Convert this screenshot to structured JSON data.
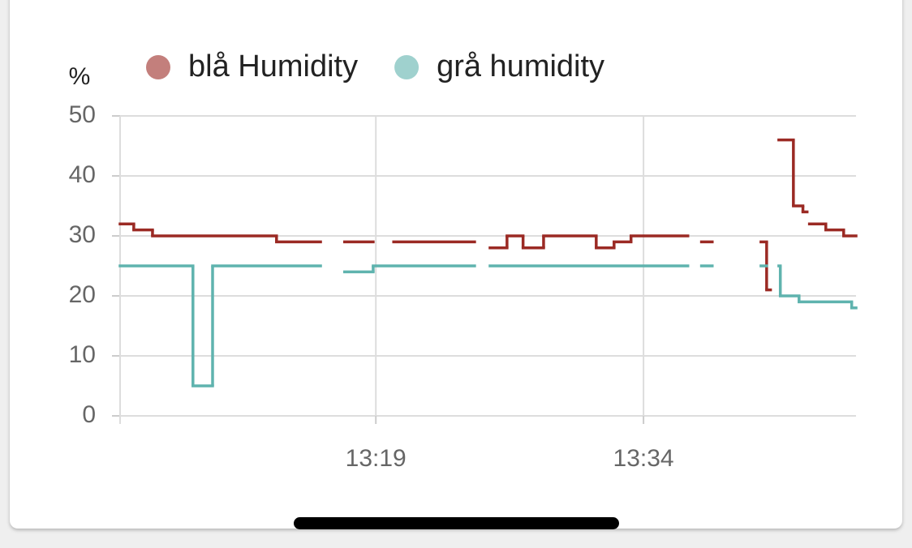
{
  "chart_data": {
    "type": "step-line",
    "y_label": "%",
    "xlim": [
      "13:04:40",
      "13:46:00"
    ],
    "xticks": [
      "13:19",
      "13:34"
    ],
    "ylim": [
      0,
      50
    ],
    "yticks": [
      0,
      10,
      20,
      30,
      40,
      50
    ],
    "grid": true,
    "legend": "top",
    "series": [
      {
        "name": "blå Humidity",
        "color": "#9b2a24",
        "x": [
          "13:04:40",
          "13:05:26",
          "13:06:29",
          "13:13:26",
          "13:15:54",
          "13:17:15",
          "13:18:51",
          "13:20:00",
          "13:24:32",
          "13:25:24",
          "13:26:21",
          "13:27:15",
          "13:28:24",
          "13:31:21",
          "13:32:21",
          "13:33:18",
          "13:36:29",
          "13:37:15",
          "13:37:51",
          "13:40:35",
          "13:40:54",
          "13:41:07",
          "13:41:35",
          "13:42:24",
          "13:42:56",
          "13:43:10",
          "13:43:18",
          "13:44:13",
          "13:45:13"
        ],
        "values": [
          32,
          31,
          30,
          29,
          null,
          29,
          null,
          29,
          null,
          28,
          30,
          28,
          30,
          28,
          29,
          30,
          null,
          29,
          null,
          29,
          21,
          null,
          46,
          35,
          34,
          null,
          32,
          31,
          30
        ]
      },
      {
        "name": "grå humidity",
        "color": "#5fb3ae",
        "x": [
          "13:04:40",
          "13:08:45",
          "13:09:51",
          "13:15:54",
          "13:17:15",
          "13:18:51",
          "13:24:32",
          "13:25:24",
          "13:36:29",
          "13:37:15",
          "13:37:51",
          "13:40:35",
          "13:40:54",
          "13:41:35",
          "13:41:40",
          "13:42:43",
          "13:45:40"
        ],
        "values": [
          25,
          5,
          25,
          null,
          24,
          25,
          null,
          25,
          null,
          25,
          null,
          25,
          null,
          25,
          20,
          19,
          18
        ]
      }
    ]
  }
}
